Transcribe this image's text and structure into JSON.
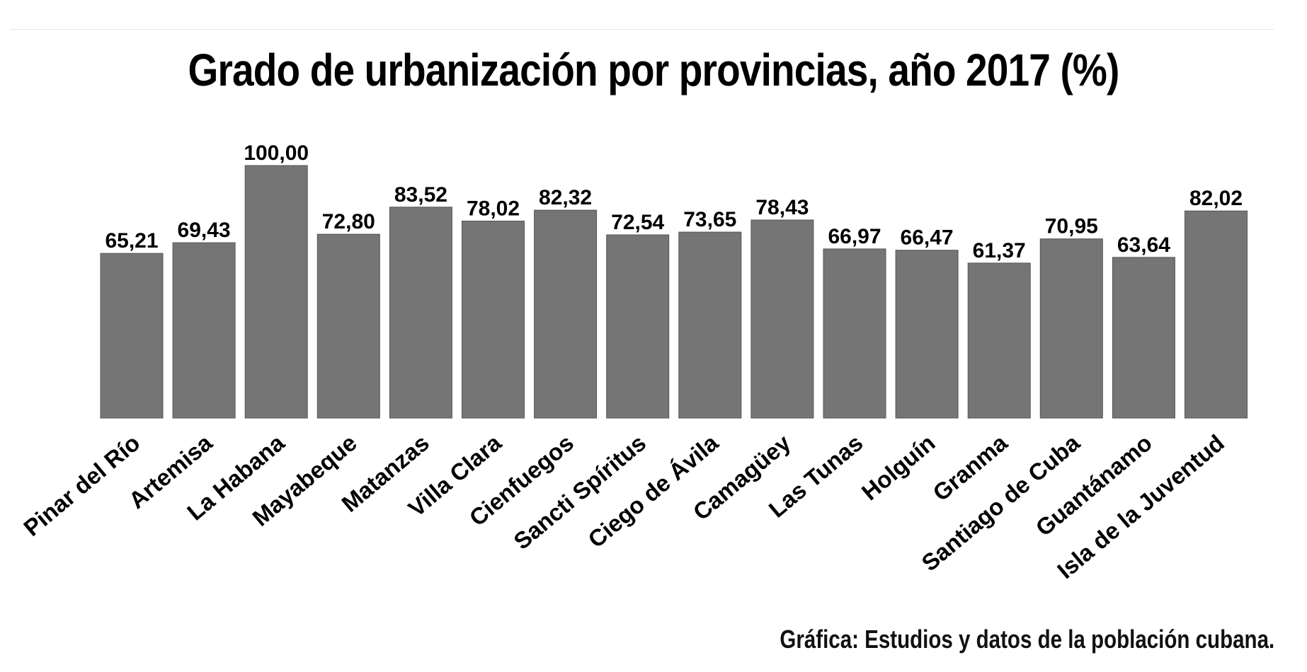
{
  "chart_data": {
    "type": "bar",
    "title": "Grado de urbanización por provincias, año 2017 (%)",
    "source": "Gráfica: Estudios y datos de la población cubana.",
    "categories": [
      "Pinar del Río",
      "Artemisa",
      "La Habana",
      "Mayabeque",
      "Matanzas",
      "Villa Clara",
      "Cienfuegos",
      "Sancti Spíritus",
      "Ciego de Ávila",
      "Camagüey",
      "Las Tunas",
      "Holguín",
      "Granma",
      "Santiago de Cuba",
      "Guantánamo",
      "Isla de la Juventud"
    ],
    "values": [
      65.21,
      69.43,
      100.0,
      72.8,
      83.52,
      78.02,
      82.32,
      72.54,
      73.65,
      78.43,
      66.97,
      66.47,
      61.37,
      70.95,
      63.64,
      82.02
    ],
    "value_labels": [
      "65,21",
      "69,43",
      "100,00",
      "72,80",
      "83,52",
      "78,02",
      "82,32",
      "72,54",
      "73,65",
      "78,43",
      "66,97",
      "66,47",
      "61,37",
      "70,95",
      "63,64",
      "82,02"
    ],
    "xlabel": "",
    "ylabel": "",
    "ylim": [
      0,
      100
    ],
    "grid": false,
    "bar_color": "#757575"
  }
}
